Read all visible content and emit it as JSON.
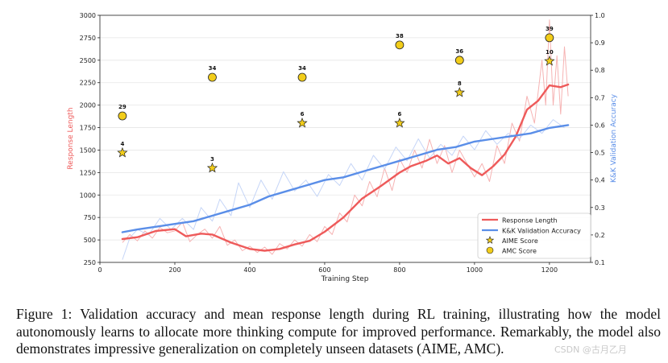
{
  "chart_data": {
    "type": "line",
    "xlabel": "Training Step",
    "ylabel_left": "Response Length",
    "ylabel_right": "K&K Validation Accuracy",
    "xlim": [
      0,
      1310
    ],
    "ylim_left": [
      250,
      3000
    ],
    "ylim_right": [
      0.1,
      1.0
    ],
    "xticks": [
      0,
      200,
      400,
      600,
      800,
      1000,
      1200
    ],
    "yticks_left": [
      250,
      500,
      750,
      1000,
      1250,
      1500,
      1750,
      2000,
      2250,
      2500,
      2750,
      3000
    ],
    "yticks_right": [
      0.1,
      0.2,
      0.3,
      0.4,
      0.5,
      0.6,
      0.7,
      0.8,
      0.9,
      1.0
    ],
    "grid": true,
    "legend_position": "lower-right",
    "series": [
      {
        "name": "Response Length",
        "axis": "left",
        "color": "#ee5a5a",
        "x": [
          60,
          100,
          150,
          200,
          230,
          270,
          300,
          350,
          400,
          440,
          480,
          520,
          560,
          600,
          650,
          700,
          750,
          800,
          830,
          870,
          900,
          930,
          960,
          990,
          1020,
          1050,
          1080,
          1110,
          1140,
          1170,
          1200,
          1230,
          1250
        ],
        "values": [
          510,
          530,
          600,
          620,
          540,
          570,
          560,
          470,
          400,
          380,
          400,
          450,
          490,
          590,
          750,
          960,
          1100,
          1250,
          1320,
          1380,
          1440,
          1350,
          1410,
          1300,
          1220,
          1320,
          1450,
          1650,
          1950,
          2050,
          2220,
          2200,
          2230
        ]
      },
      {
        "name": "K&K Validation Accuracy",
        "axis": "right",
        "color": "#5a8ee8",
        "x": [
          60,
          100,
          150,
          200,
          250,
          300,
          350,
          400,
          450,
          500,
          550,
          600,
          650,
          700,
          750,
          800,
          850,
          900,
          950,
          1000,
          1050,
          1100,
          1150,
          1200,
          1250
        ],
        "values": [
          0.21,
          0.22,
          0.23,
          0.24,
          0.25,
          0.27,
          0.29,
          0.31,
          0.34,
          0.36,
          0.38,
          0.4,
          0.41,
          0.43,
          0.45,
          0.47,
          0.49,
          0.51,
          0.52,
          0.54,
          0.55,
          0.56,
          0.57,
          0.59,
          0.6
        ]
      }
    ],
    "raw_series": [
      {
        "name": "Response Length (raw)",
        "axis": "left",
        "color": "#f6b3b3",
        "x": [
          60,
          80,
          100,
          120,
          140,
          160,
          180,
          200,
          220,
          240,
          260,
          280,
          300,
          320,
          340,
          360,
          380,
          400,
          420,
          440,
          460,
          480,
          500,
          520,
          540,
          560,
          580,
          600,
          620,
          640,
          660,
          680,
          700,
          720,
          740,
          760,
          780,
          800,
          820,
          840,
          860,
          880,
          900,
          920,
          940,
          960,
          980,
          1000,
          1020,
          1040,
          1060,
          1080,
          1100,
          1120,
          1140,
          1160,
          1180,
          1190,
          1200,
          1210,
          1220,
          1230,
          1240,
          1250
        ],
        "values": [
          470,
          560,
          490,
          600,
          520,
          640,
          580,
          600,
          700,
          480,
          560,
          620,
          520,
          650,
          440,
          500,
          380,
          430,
          360,
          420,
          340,
          460,
          400,
          500,
          430,
          560,
          480,
          650,
          560,
          800,
          700,
          1000,
          880,
          1150,
          980,
          1300,
          1050,
          1400,
          1250,
          1500,
          1300,
          1620,
          1350,
          1550,
          1250,
          1500,
          1350,
          1200,
          1350,
          1150,
          1550,
          1350,
          1800,
          1600,
          2100,
          1800,
          2500,
          2000,
          2950,
          2000,
          2550,
          1900,
          2650,
          2100
        ]
      },
      {
        "name": "K&K Validation Accuracy (raw)",
        "axis": "right",
        "color": "#c5d5f7",
        "x": [
          60,
          80,
          100,
          130,
          160,
          190,
          220,
          250,
          270,
          300,
          320,
          350,
          370,
          400,
          430,
          460,
          490,
          520,
          550,
          580,
          610,
          640,
          670,
          700,
          730,
          760,
          790,
          820,
          850,
          880,
          910,
          940,
          970,
          1000,
          1030,
          1060,
          1090,
          1120,
          1150,
          1180,
          1210,
          1240
        ],
        "values": [
          0.11,
          0.19,
          0.22,
          0.2,
          0.26,
          0.22,
          0.26,
          0.22,
          0.3,
          0.25,
          0.33,
          0.27,
          0.39,
          0.3,
          0.4,
          0.33,
          0.43,
          0.36,
          0.4,
          0.34,
          0.42,
          0.38,
          0.46,
          0.4,
          0.49,
          0.44,
          0.52,
          0.47,
          0.55,
          0.48,
          0.53,
          0.49,
          0.56,
          0.51,
          0.58,
          0.53,
          0.57,
          0.55,
          0.6,
          0.57,
          0.62,
          0.59
        ]
      }
    ],
    "aime_scores": {
      "name": "AIME Score",
      "marker": "star",
      "color": "#f2cd1a",
      "points": [
        {
          "x": 60,
          "y": 1470,
          "label": "4"
        },
        {
          "x": 300,
          "y": 1300,
          "label": "3"
        },
        {
          "x": 540,
          "y": 1800,
          "label": "6"
        },
        {
          "x": 800,
          "y": 1800,
          "label": "6"
        },
        {
          "x": 960,
          "y": 2140,
          "label": "8"
        },
        {
          "x": 1200,
          "y": 2490,
          "label": "10"
        }
      ]
    },
    "amc_scores": {
      "name": "AMC Score",
      "marker": "circle",
      "color": "#f2cd1a",
      "points": [
        {
          "x": 60,
          "y": 1880,
          "label": "29"
        },
        {
          "x": 300,
          "y": 2310,
          "label": "34"
        },
        {
          "x": 540,
          "y": 2310,
          "label": "34"
        },
        {
          "x": 800,
          "y": 2670,
          "label": "38"
        },
        {
          "x": 960,
          "y": 2500,
          "label": "36"
        },
        {
          "x": 1200,
          "y": 2750,
          "label": "39"
        }
      ]
    },
    "legend": [
      "Response Length",
      "K&K Validation Accuracy",
      "AIME Score",
      "AMC Score"
    ]
  },
  "caption": "Figure 1: Validation accuracy and mean response length during RL training, illustrating how the model autonomously learns to allocate more thinking compute for improved performance. Remarkably, the model also demonstrates impressive generalization on completely unseen datasets (AIME, AMC).",
  "watermark": "CSDN @古月乙月"
}
